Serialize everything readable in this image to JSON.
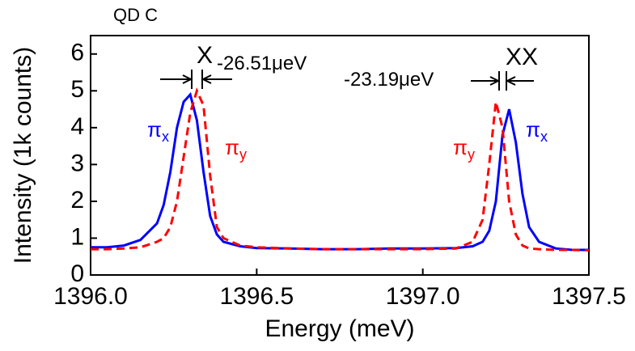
{
  "chart_data": {
    "type": "line",
    "title": "QD C",
    "x_label": "Energy (meV)",
    "y_label": "Intensity (1k counts)",
    "xlim": [
      1396.0,
      1397.5
    ],
    "ylim": [
      0,
      6.5
    ],
    "xticks": [
      {
        "value": 1396.0,
        "label": "1396.0"
      },
      {
        "value": 1396.5,
        "label": "1396.5"
      },
      {
        "value": 1397.0,
        "label": "1397.0"
      },
      {
        "value": 1397.5,
        "label": "1397.5"
      }
    ],
    "yticks": [
      0,
      1,
      2,
      3,
      4,
      5,
      6
    ],
    "x": [
      1396.0,
      1396.05,
      1396.1,
      1396.15,
      1396.2,
      1396.22,
      1396.24,
      1396.26,
      1396.28,
      1396.3,
      1396.32,
      1396.34,
      1396.36,
      1396.38,
      1396.4,
      1396.45,
      1396.5,
      1396.6,
      1396.7,
      1396.8,
      1396.9,
      1397.0,
      1397.1,
      1397.15,
      1397.18,
      1397.2,
      1397.22,
      1397.24,
      1397.26,
      1397.28,
      1397.3,
      1397.32,
      1397.35,
      1397.4,
      1397.45,
      1397.5
    ],
    "series": [
      {
        "color": "#0000ff",
        "dash": false,
        "values": [
          0.75,
          0.75,
          0.8,
          0.95,
          1.4,
          1.9,
          2.8,
          4.0,
          4.7,
          4.9,
          4.2,
          2.8,
          1.6,
          1.1,
          0.9,
          0.78,
          0.73,
          0.72,
          0.7,
          0.7,
          0.72,
          0.72,
          0.73,
          0.78,
          0.9,
          1.2,
          2.0,
          3.8,
          4.5,
          3.6,
          2.2,
          1.3,
          0.9,
          0.72,
          0.68,
          0.68
        ]
      },
      {
        "color": "#ff0000",
        "dash": true,
        "values": [
          0.7,
          0.7,
          0.72,
          0.75,
          0.9,
          1.0,
          1.3,
          2.0,
          3.2,
          4.4,
          5.0,
          4.6,
          2.7,
          1.3,
          1.0,
          0.8,
          0.75,
          0.72,
          0.7,
          0.7,
          0.7,
          0.7,
          0.72,
          0.9,
          1.5,
          3.0,
          4.7,
          4.0,
          2.0,
          1.1,
          0.8,
          0.72,
          0.7,
          0.68,
          0.68,
          0.67
        ]
      }
    ],
    "annotations": [
      {
        "text": "X"
      },
      {
        "text": "-26.51μeV"
      },
      {
        "text": "XX"
      },
      {
        "text": "-23.19μeV"
      },
      {
        "text": "π",
        "sub": "x",
        "color": "#0000ff"
      },
      {
        "text": "π",
        "sub": "y",
        "color": "#ff0000"
      },
      {
        "text": "π",
        "sub": "y",
        "color": "#ff0000"
      },
      {
        "text": "π",
        "sub": "x",
        "color": "#0000ff"
      }
    ]
  }
}
